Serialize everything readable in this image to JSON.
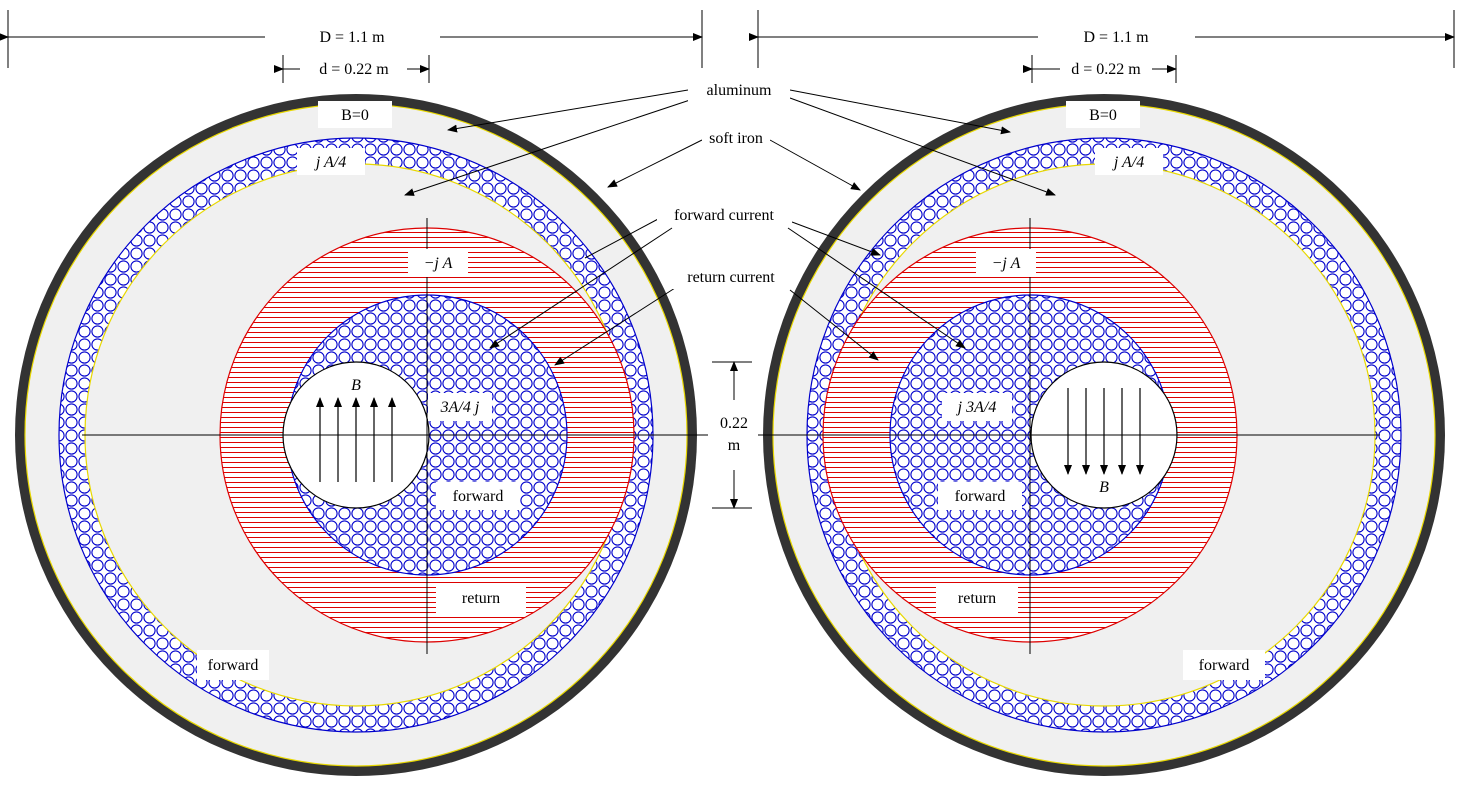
{
  "dimensions": {
    "outer_diameter": "D = 1.1 m",
    "inner_diameter_left": "d =  0.22 m",
    "inner_diameter_right": "d = 0.22 m",
    "gap_value": "0.22",
    "gap_unit": "m"
  },
  "callouts": {
    "aluminum": "aluminum",
    "soft_iron": "soft iron",
    "forward_current": "forward current",
    "return_current": "return current"
  },
  "left_magnet": {
    "b_zero": "B=0",
    "outer_current": "j A/4",
    "return_shell_current": "−j A",
    "inner_current": "3A/4 j",
    "inner_label": "forward",
    "return_label": "return",
    "outer_label": "forward",
    "field": "B"
  },
  "right_magnet": {
    "b_zero": "B=0",
    "outer_current": "j A/4",
    "return_shell_current": "−j A",
    "inner_current": "j  3A/4",
    "inner_label": "forward",
    "return_label": "return",
    "outer_label": "forward",
    "field": "B"
  },
  "colors": {
    "iron": "#333333",
    "aluminum": "#f0f0f0",
    "forward_conductor": "#0000cc",
    "return_conductor": "#dd0000",
    "boundary": "#e8d800"
  }
}
